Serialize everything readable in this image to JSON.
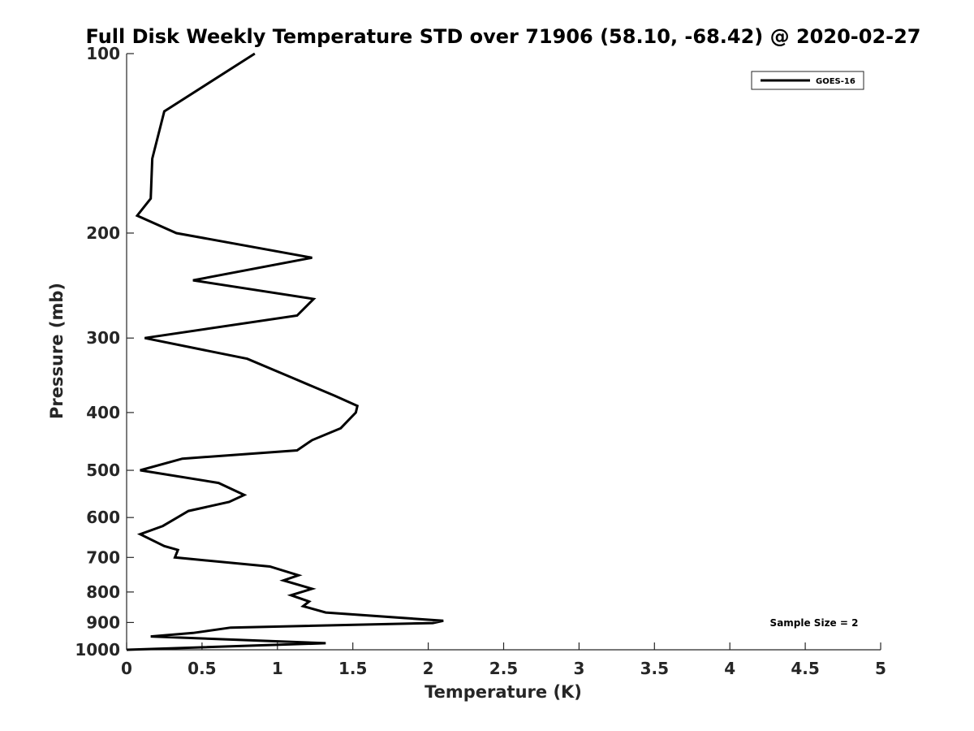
{
  "chart_data": {
    "type": "line",
    "title": "Full Disk Weekly Temperature STD over 71906 (58.10, -68.42) @ 2020-02-27",
    "xlabel": "Temperature (K)",
    "ylabel": "Pressure (mb)",
    "xlim": [
      0,
      5
    ],
    "ylim": [
      100,
      1000
    ],
    "y_scale": "log",
    "y_reversed": true,
    "xticks": [
      "0",
      "0.5",
      "1",
      "1.5",
      "2",
      "2.5",
      "3",
      "3.5",
      "4",
      "4.5",
      "5"
    ],
    "yticks": [
      "100",
      "200",
      "300",
      "400",
      "500",
      "600",
      "700",
      "800",
      "900",
      "1000"
    ],
    "grid": false,
    "legend": {
      "position": "top-right"
    },
    "annotation": "Sample Size = 2",
    "series": [
      {
        "name": "GOES-16",
        "color": "#000000",
        "points": [
          [
            0.85,
            100
          ],
          [
            0.25,
            125
          ],
          [
            0.17,
            150
          ],
          [
            0.16,
            175
          ],
          [
            0.07,
            187
          ],
          [
            0.33,
            200
          ],
          [
            1.23,
            220
          ],
          [
            0.44,
            240
          ],
          [
            1.24,
            258
          ],
          [
            1.13,
            275
          ],
          [
            0.12,
            300
          ],
          [
            0.8,
            325
          ],
          [
            1.1,
            350
          ],
          [
            1.38,
            375
          ],
          [
            1.53,
            390
          ],
          [
            1.52,
            400
          ],
          [
            1.42,
            425
          ],
          [
            1.23,
            445
          ],
          [
            1.13,
            463
          ],
          [
            0.37,
            478
          ],
          [
            0.09,
            500
          ],
          [
            0.61,
            525
          ],
          [
            0.78,
            550
          ],
          [
            0.68,
            565
          ],
          [
            0.41,
            585
          ],
          [
            0.24,
            620
          ],
          [
            0.09,
            640
          ],
          [
            0.25,
            670
          ],
          [
            0.34,
            680
          ],
          [
            0.32,
            700
          ],
          [
            0.95,
            725
          ],
          [
            1.14,
            750
          ],
          [
            1.04,
            765
          ],
          [
            1.23,
            790
          ],
          [
            1.09,
            810
          ],
          [
            1.21,
            830
          ],
          [
            1.17,
            845
          ],
          [
            1.32,
            866
          ],
          [
            2.1,
            894
          ],
          [
            2.03,
            902
          ],
          [
            0.69,
            918
          ],
          [
            0.44,
            937
          ],
          [
            0.16,
            950
          ],
          [
            1.32,
            975
          ],
          [
            0.0,
            1000
          ]
        ]
      }
    ]
  }
}
